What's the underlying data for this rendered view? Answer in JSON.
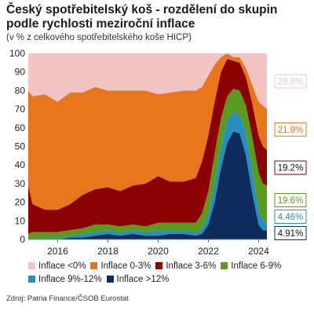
{
  "header": {
    "title": "Český spotřebitelský koš - rozdělení do skupin podle rychlosti meziroční inflace",
    "subtitle": "(v % z celkového spotřebitelského koše HICP)"
  },
  "source": "Zdroj: Patria Finance/ČSOB Eurostat",
  "chart_data": {
    "type": "area",
    "stacked": true,
    "x_unit": "year",
    "xlim": [
      2014.83,
      2024.33
    ],
    "ylim": [
      0,
      100
    ],
    "x_ticks": [
      2016,
      2018,
      2020,
      2022,
      2024
    ],
    "y_ticks": [
      0,
      10,
      20,
      30,
      40,
      50,
      60,
      70,
      80,
      90,
      100
    ],
    "grid": false,
    "legend": "bottom",
    "series": [
      {
        "name": "Inflace >12%",
        "color": "#0e2d5e",
        "end_label": "4.91%",
        "points": [
          [
            2014.83,
            0
          ],
          [
            2015.0,
            0
          ],
          [
            2015.5,
            0
          ],
          [
            2016.0,
            0
          ],
          [
            2016.5,
            1
          ],
          [
            2017.0,
            1
          ],
          [
            2017.5,
            2
          ],
          [
            2018.0,
            3
          ],
          [
            2018.5,
            2
          ],
          [
            2019.0,
            3
          ],
          [
            2019.5,
            2
          ],
          [
            2020.0,
            2
          ],
          [
            2020.5,
            3
          ],
          [
            2021.0,
            3
          ],
          [
            2021.5,
            2
          ],
          [
            2021.75,
            3
          ],
          [
            2022.0,
            8
          ],
          [
            2022.25,
            20
          ],
          [
            2022.5,
            38
          ],
          [
            2022.75,
            52
          ],
          [
            2023.0,
            58
          ],
          [
            2023.25,
            57
          ],
          [
            2023.5,
            45
          ],
          [
            2023.75,
            25
          ],
          [
            2024.0,
            8
          ],
          [
            2024.17,
            5
          ],
          [
            2024.33,
            4.91
          ]
        ]
      },
      {
        "name": "Inflace 9%-12%",
        "color": "#2b8cbe",
        "end_label": "4.46%",
        "points": [
          [
            2014.83,
            0
          ],
          [
            2015.0,
            0
          ],
          [
            2015.5,
            1
          ],
          [
            2016.0,
            1
          ],
          [
            2016.5,
            1
          ],
          [
            2017.0,
            2
          ],
          [
            2017.5,
            2
          ],
          [
            2018.0,
            2
          ],
          [
            2018.5,
            2
          ],
          [
            2019.0,
            2
          ],
          [
            2019.5,
            2
          ],
          [
            2020.0,
            3
          ],
          [
            2020.5,
            2
          ],
          [
            2021.0,
            2
          ],
          [
            2021.5,
            2
          ],
          [
            2021.75,
            3
          ],
          [
            2022.0,
            6
          ],
          [
            2022.25,
            10
          ],
          [
            2022.5,
            12
          ],
          [
            2022.75,
            12
          ],
          [
            2023.0,
            11
          ],
          [
            2023.25,
            10
          ],
          [
            2023.5,
            12
          ],
          [
            2023.75,
            12
          ],
          [
            2024.0,
            8
          ],
          [
            2024.17,
            5
          ],
          [
            2024.33,
            4.46
          ]
        ]
      },
      {
        "name": "Inflace 6-9%",
        "color": "#5a9a1e",
        "end_label": "19.6%",
        "points": [
          [
            2014.83,
            3
          ],
          [
            2015.0,
            4
          ],
          [
            2015.5,
            3
          ],
          [
            2016.0,
            3
          ],
          [
            2016.5,
            3
          ],
          [
            2017.0,
            3
          ],
          [
            2017.5,
            4
          ],
          [
            2018.0,
            3
          ],
          [
            2018.5,
            3
          ],
          [
            2019.0,
            3
          ],
          [
            2019.5,
            3
          ],
          [
            2020.0,
            4
          ],
          [
            2020.5,
            4
          ],
          [
            2021.0,
            4
          ],
          [
            2021.5,
            5
          ],
          [
            2021.75,
            8
          ],
          [
            2022.0,
            12
          ],
          [
            2022.25,
            16
          ],
          [
            2022.5,
            15
          ],
          [
            2022.75,
            13
          ],
          [
            2023.0,
            12
          ],
          [
            2023.25,
            13
          ],
          [
            2023.5,
            15
          ],
          [
            2023.75,
            18
          ],
          [
            2024.0,
            20
          ],
          [
            2024.17,
            20
          ],
          [
            2024.33,
            19.6
          ]
        ]
      },
      {
        "name": "Inflace 3-6%",
        "color": "#8b0000",
        "end_label": "19.2%",
        "points": [
          [
            2014.83,
            26
          ],
          [
            2015.0,
            15
          ],
          [
            2015.5,
            12
          ],
          [
            2016.0,
            12
          ],
          [
            2016.5,
            14
          ],
          [
            2017.0,
            18
          ],
          [
            2017.5,
            19
          ],
          [
            2018.0,
            20
          ],
          [
            2018.5,
            19
          ],
          [
            2019.0,
            21
          ],
          [
            2019.5,
            23
          ],
          [
            2020.0,
            25
          ],
          [
            2020.5,
            22
          ],
          [
            2021.0,
            22
          ],
          [
            2021.5,
            24
          ],
          [
            2021.75,
            28
          ],
          [
            2022.0,
            30
          ],
          [
            2022.25,
            28
          ],
          [
            2022.5,
            25
          ],
          [
            2022.75,
            20
          ],
          [
            2023.0,
            15
          ],
          [
            2023.25,
            15
          ],
          [
            2023.5,
            15
          ],
          [
            2023.75,
            18
          ],
          [
            2024.0,
            20
          ],
          [
            2024.17,
            20
          ],
          [
            2024.33,
            19.2
          ]
        ]
      },
      {
        "name": "Inflace 0-3%",
        "color": "#e8761c",
        "end_label": "21.9%",
        "points": [
          [
            2014.83,
            51
          ],
          [
            2015.0,
            58
          ],
          [
            2015.5,
            62
          ],
          [
            2016.0,
            58
          ],
          [
            2016.5,
            60
          ],
          [
            2017.0,
            55
          ],
          [
            2017.5,
            55
          ],
          [
            2018.0,
            52
          ],
          [
            2018.5,
            54
          ],
          [
            2019.0,
            51
          ],
          [
            2019.5,
            50
          ],
          [
            2020.0,
            44
          ],
          [
            2020.5,
            48
          ],
          [
            2021.0,
            49
          ],
          [
            2021.5,
            47
          ],
          [
            2021.75,
            40
          ],
          [
            2022.0,
            32
          ],
          [
            2022.25,
            20
          ],
          [
            2022.5,
            8
          ],
          [
            2022.75,
            3
          ],
          [
            2023.0,
            2
          ],
          [
            2023.25,
            3
          ],
          [
            2023.5,
            5
          ],
          [
            2023.75,
            10
          ],
          [
            2024.0,
            18
          ],
          [
            2024.17,
            22
          ],
          [
            2024.33,
            21.9
          ]
        ]
      },
      {
        "name": "Inflace <0%",
        "color": "#f2c4c4",
        "end_label": "29.9%",
        "points": [
          [
            2014.83,
            20
          ],
          [
            2015.0,
            23
          ],
          [
            2015.5,
            22
          ],
          [
            2016.0,
            26
          ],
          [
            2016.5,
            21
          ],
          [
            2017.0,
            21
          ],
          [
            2017.5,
            18
          ],
          [
            2018.0,
            20
          ],
          [
            2018.5,
            20
          ],
          [
            2019.0,
            20
          ],
          [
            2019.5,
            20
          ],
          [
            2020.0,
            22
          ],
          [
            2020.5,
            21
          ],
          [
            2021.0,
            20
          ],
          [
            2021.5,
            20
          ],
          [
            2021.75,
            18
          ],
          [
            2022.0,
            12
          ],
          [
            2022.25,
            6
          ],
          [
            2022.5,
            2
          ],
          [
            2022.75,
            0
          ],
          [
            2023.0,
            2
          ],
          [
            2023.25,
            2
          ],
          [
            2023.5,
            8
          ],
          [
            2023.75,
            17
          ],
          [
            2024.0,
            26
          ],
          [
            2024.17,
            28
          ],
          [
            2024.33,
            29.9
          ]
        ]
      }
    ]
  }
}
